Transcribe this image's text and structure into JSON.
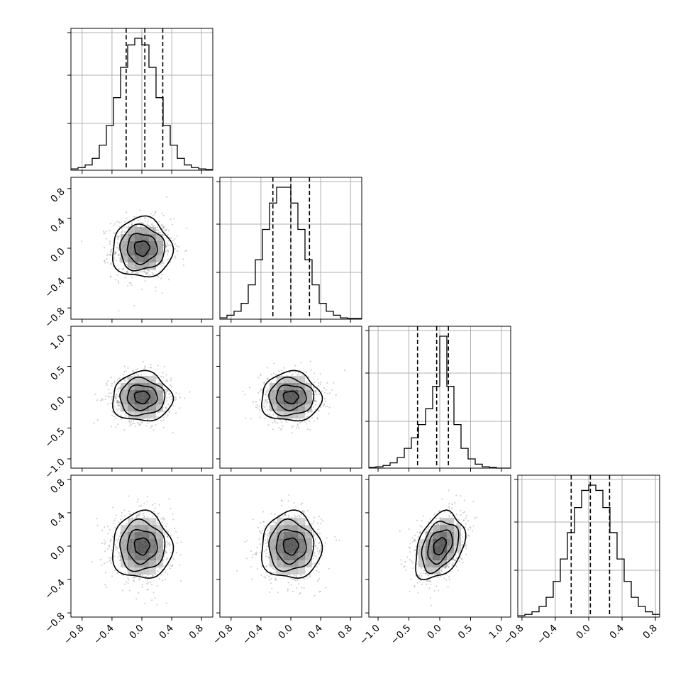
{
  "chart_data": {
    "type": "corner",
    "title": "",
    "parameters": [
      {
        "name": "",
        "range": [
          -0.95,
          0.95
        ],
        "ticks": [
          -0.8,
          -0.4,
          0.0,
          0.4,
          0.8
        ],
        "tick_labels": [
          "−0.8",
          "−0.4",
          "0.0",
          "0.4",
          "0.8"
        ],
        "sigma": 0.2,
        "quantiles": [
          -0.21,
          0.04,
          0.28
        ],
        "show_x_labels": true,
        "show_y_labels": false
      },
      {
        "name": "",
        "range": [
          -0.95,
          0.95
        ],
        "ticks": [
          -0.8,
          -0.4,
          0.0,
          0.4,
          0.8
        ],
        "tick_labels": [
          "−0.8",
          "−0.4",
          "0.0",
          "0.4",
          "0.8"
        ],
        "sigma": 0.2,
        "quantiles": [
          -0.24,
          0.0,
          0.25
        ],
        "show_x_labels": true,
        "show_y_labels": true
      },
      {
        "name": "",
        "range": [
          -1.15,
          1.15
        ],
        "ticks": [
          -1.0,
          -0.5,
          0.0,
          0.5,
          1.0
        ],
        "tick_labels": [
          "−1.0",
          "−0.5",
          "0.0",
          "0.5",
          "1.0"
        ],
        "sigma": 0.2,
        "quantiles": [
          -0.36,
          -0.05,
          0.14
        ],
        "show_x_labels": true,
        "show_y_labels": true
      },
      {
        "name": "",
        "range": [
          -0.85,
          0.85
        ],
        "ticks": [
          -0.8,
          -0.4,
          0.0,
          0.4,
          0.8
        ],
        "tick_labels": [
          "−0.8",
          "−0.4",
          "0.0",
          "0.4",
          "0.8"
        ],
        "sigma": 0.2,
        "quantiles": [
          -0.21,
          0.02,
          0.25
        ],
        "show_x_labels": true,
        "show_y_labels": true
      }
    ],
    "histograms": [
      {
        "param": 0,
        "bin_edges": [
          -0.95,
          -0.855,
          -0.76,
          -0.665,
          -0.57,
          -0.475,
          -0.38,
          -0.285,
          -0.19,
          -0.095,
          0.0,
          0.095,
          0.19,
          0.285,
          0.38,
          0.475,
          0.57,
          0.665,
          0.76,
          0.855,
          0.95
        ],
        "counts": [
          0.01,
          0.02,
          0.04,
          0.09,
          0.19,
          0.34,
          0.55,
          0.78,
          0.95,
          1.0,
          0.95,
          0.78,
          0.55,
          0.34,
          0.19,
          0.09,
          0.04,
          0.02,
          0.01,
          0.005
        ]
      },
      {
        "param": 1,
        "bin_edges": [
          -0.95,
          -0.855,
          -0.76,
          -0.665,
          -0.57,
          -0.475,
          -0.38,
          -0.285,
          -0.19,
          -0.095,
          0.0,
          0.095,
          0.19,
          0.285,
          0.38,
          0.475,
          0.57,
          0.665,
          0.76,
          0.855,
          0.95
        ],
        "counts": [
          0.01,
          0.03,
          0.06,
          0.12,
          0.26,
          0.45,
          0.68,
          0.88,
          1.0,
          1.0,
          0.88,
          0.68,
          0.45,
          0.26,
          0.12,
          0.06,
          0.03,
          0.01,
          0.005,
          0.005
        ]
      },
      {
        "param": 2,
        "bin_edges": [
          -1.15,
          -1.035,
          -0.92,
          -0.805,
          -0.69,
          -0.575,
          -0.46,
          -0.345,
          -0.23,
          -0.115,
          0.0,
          0.115,
          0.23,
          0.345,
          0.46,
          0.575,
          0.69,
          0.805,
          0.92,
          1.035,
          1.15
        ],
        "counts": [
          0.005,
          0.01,
          0.02,
          0.04,
          0.08,
          0.15,
          0.23,
          0.33,
          0.45,
          0.62,
          1.0,
          0.62,
          0.33,
          0.15,
          0.07,
          0.03,
          0.01,
          0.005,
          0.0,
          0.0
        ]
      },
      {
        "param": 3,
        "bin_edges": [
          -0.85,
          -0.765,
          -0.68,
          -0.595,
          -0.51,
          -0.425,
          -0.34,
          -0.255,
          -0.17,
          -0.085,
          0.0,
          0.085,
          0.17,
          0.255,
          0.34,
          0.425,
          0.51,
          0.595,
          0.68,
          0.765,
          0.85
        ],
        "counts": [
          0.01,
          0.02,
          0.04,
          0.08,
          0.15,
          0.27,
          0.44,
          0.64,
          0.83,
          0.96,
          1.0,
          0.96,
          0.83,
          0.64,
          0.44,
          0.27,
          0.15,
          0.08,
          0.04,
          0.02
        ]
      }
    ],
    "pairs": [
      {
        "x_param": 0,
        "y_param": 1,
        "correlation": 0.0,
        "x_sigma": 0.2,
        "y_sigma": 0.2
      },
      {
        "x_param": 0,
        "y_param": 2,
        "correlation": 0.0,
        "x_sigma": 0.2,
        "y_sigma": 0.2
      },
      {
        "x_param": 1,
        "y_param": 2,
        "correlation": 0.0,
        "x_sigma": 0.2,
        "y_sigma": 0.2
      },
      {
        "x_param": 0,
        "y_param": 3,
        "correlation": 0.0,
        "x_sigma": 0.2,
        "y_sigma": 0.2
      },
      {
        "x_param": 1,
        "y_param": 3,
        "correlation": 0.0,
        "x_sigma": 0.2,
        "y_sigma": 0.2
      },
      {
        "x_param": 2,
        "y_param": 3,
        "correlation": 0.35,
        "x_sigma": 0.2,
        "y_sigma": 0.2
      }
    ],
    "contour_levels_sigma": [
      0.5,
      1.0,
      1.5,
      2.0
    ],
    "grid": true,
    "legend": "none"
  }
}
